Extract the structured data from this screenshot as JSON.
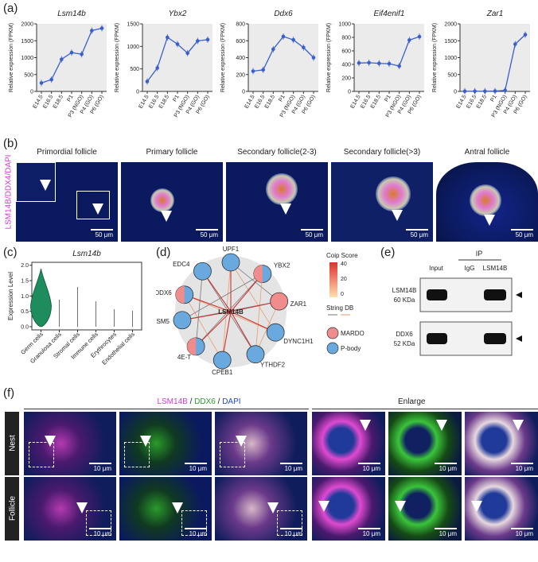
{
  "panel_labels": {
    "a": "(a)",
    "b": "(b)",
    "c": "(c)",
    "d": "(d)",
    "e": "(e)",
    "f": "(f)"
  },
  "chart_data": [
    {
      "type": "line",
      "title": "Lsm14b",
      "ylabel": "Relative expression (FPKM)",
      "categories": [
        "E14.5",
        "E16.5",
        "E18.5",
        "P1",
        "P3 (NGO)",
        "P4 (GO)",
        "P6 (GO)"
      ],
      "values": [
        250,
        350,
        950,
        1150,
        1100,
        1800,
        1870
      ],
      "ylim": [
        0,
        2000
      ],
      "yticks": [
        0,
        500,
        1000,
        1500,
        2000
      ]
    },
    {
      "type": "line",
      "title": "Ybx2",
      "ylabel": "Relative expression (FPKM)",
      "categories": [
        "E14.5",
        "E16.5",
        "E18.5",
        "P1",
        "P3 (NGO)",
        "P4 (GO)",
        "P6 (GO)"
      ],
      "values": [
        220,
        520,
        1200,
        1050,
        850,
        1120,
        1150
      ],
      "ylim": [
        0,
        1500
      ],
      "yticks": [
        0,
        500,
        1000,
        1500
      ]
    },
    {
      "type": "line",
      "title": "Ddx6",
      "ylabel": "Relative expression (FPKM)",
      "categories": [
        "E14.5",
        "E16.5",
        "E18.5",
        "P1",
        "P3 (NGO)",
        "P4 (GO)",
        "P6 (GO)"
      ],
      "values": [
        240,
        255,
        500,
        650,
        610,
        520,
        400
      ],
      "ylim": [
        0,
        800
      ],
      "yticks": [
        0,
        200,
        400,
        600,
        800
      ]
    },
    {
      "type": "line",
      "title": "Eif4enif1",
      "ylabel": "Relative expression (FPKM)",
      "categories": [
        "E14.5",
        "E16.5",
        "E18.5",
        "P1",
        "P3 (NGO)",
        "P4 (GO)",
        "P6 (GO)"
      ],
      "values": [
        420,
        425,
        415,
        410,
        375,
        760,
        810
      ],
      "ylim": [
        0,
        1000
      ],
      "yticks": [
        0,
        200,
        400,
        600,
        800,
        1000
      ]
    },
    {
      "type": "line",
      "title": "Zar1",
      "ylabel": "Relative expression (FPKM)",
      "categories": [
        "E14.5",
        "E16.5",
        "E18.5",
        "P1",
        "P3 (NGO)",
        "P4 (GO)",
        "P6 (GO)"
      ],
      "values": [
        5,
        5,
        5,
        10,
        30,
        1400,
        1680
      ],
      "ylim": [
        0,
        2000
      ],
      "yticks": [
        0,
        500,
        1000,
        1500,
        2000
      ]
    }
  ],
  "panel_b": {
    "ylabel": "LSM14B/DDX4/DAPI",
    "titles": [
      "Primordial follicle",
      "Primary follicle",
      "Secondary follicle(2-3)",
      "Secondary follicle(>3)",
      "Antral follicle"
    ],
    "scale": "50 μm"
  },
  "panel_c": {
    "title": "Lsm14b",
    "ylabel": "Expression Level",
    "yticks": [
      "0.0",
      "0.5",
      "1.0",
      "1.5",
      "2.0"
    ],
    "categories": [
      "Germ cells",
      "Granulosa cells",
      "Stromal cells",
      "Immune cells",
      "Erythrocytes",
      "Endothelial cells"
    ]
  },
  "panel_d": {
    "center": "LSM14B",
    "nodes": [
      "UPF1",
      "YBX2",
      "ZAR1",
      "DYNC1H1",
      "YTHDF2",
      "CPEB1",
      "4E-T",
      "LSM5",
      "DDX6",
      "EDC4"
    ],
    "legend_title": "Coip Score",
    "legend_ticks": [
      "40",
      "20",
      "0"
    ],
    "string_label": "String DB",
    "mardo": "MARDO",
    "pbody": "P-body"
  },
  "panel_e": {
    "ip": "IP",
    "lanes": [
      "Input",
      "IgG",
      "LSM14B"
    ],
    "rows": [
      {
        "protein": "LSM14B",
        "size": "60 KDa"
      },
      {
        "protein": "DDX6",
        "size": "52 KDa"
      }
    ]
  },
  "panel_f": {
    "header_lsm": "LSM14B",
    "header_sep": "/",
    "header_ddx": "DDX6",
    "header_dapi": "DAPI",
    "enlarge": "Enlarge",
    "rows": [
      "Nest",
      "Follicle"
    ],
    "scale": "10 μm"
  },
  "colors": {
    "line": "#3a5fcd",
    "violin": "#1e8c5c",
    "magenta": "#e04ad0",
    "green": "#3bc43b",
    "dapi": "#2447c9"
  }
}
